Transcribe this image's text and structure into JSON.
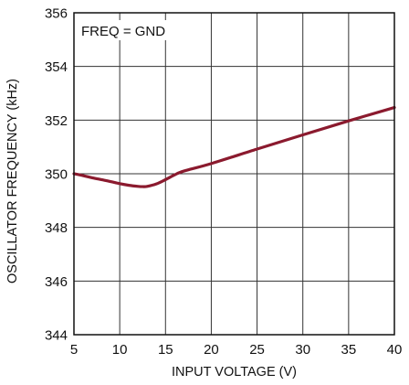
{
  "chart_data": {
    "type": "line",
    "title": "",
    "xlabel": "INPUT VOLTAGE (V)",
    "ylabel": "OSCILLATOR FREQUENCY (kHz)",
    "xlim": [
      5,
      40
    ],
    "ylim": [
      344,
      356
    ],
    "xticks": [
      5,
      10,
      15,
      20,
      25,
      30,
      35,
      40
    ],
    "yticks": [
      344,
      346,
      348,
      350,
      352,
      354,
      356
    ],
    "grid": true,
    "annotation": "FREQ = GND",
    "series": [
      {
        "color": "#8b1a2e",
        "x": [
          5,
          6,
          7,
          8,
          9,
          10,
          11,
          12,
          12.5,
          13,
          14,
          15,
          16,
          17,
          20,
          25,
          30,
          35,
          40
        ],
        "y": [
          350.0,
          349.93,
          349.85,
          349.78,
          349.71,
          349.63,
          349.57,
          349.53,
          349.52,
          349.53,
          349.62,
          349.78,
          349.96,
          350.1,
          350.38,
          350.92,
          351.45,
          351.97,
          352.47
        ]
      }
    ]
  }
}
